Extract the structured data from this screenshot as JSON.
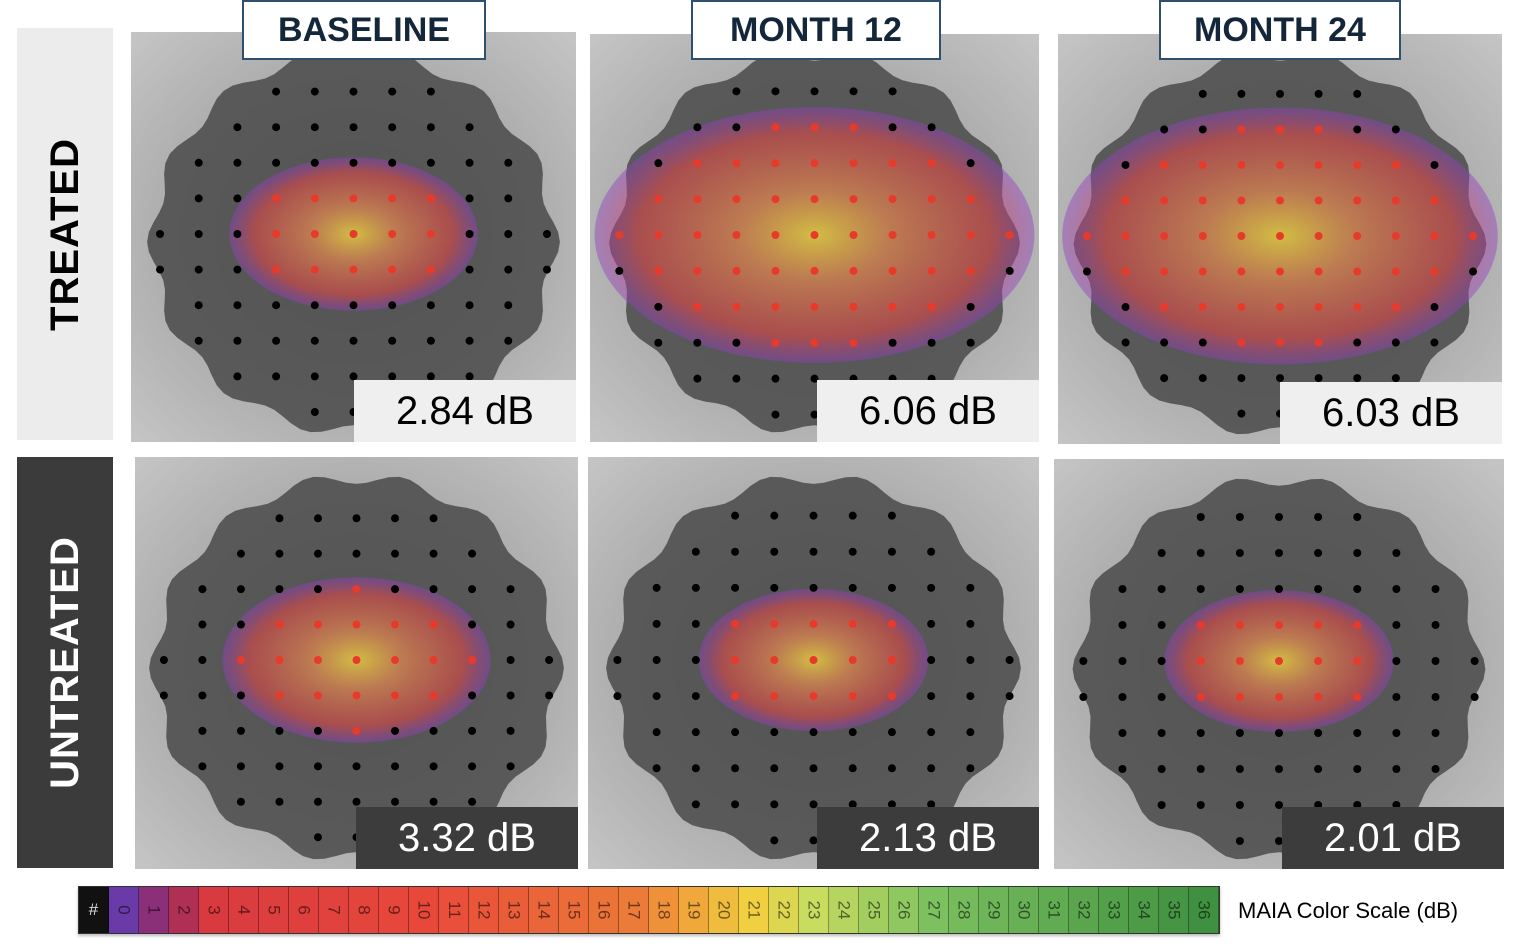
{
  "rows": [
    {
      "label": "TREATED",
      "scheme": "light"
    },
    {
      "label": "UNTREATED",
      "scheme": "dark"
    }
  ],
  "columns": [
    "BASELINE",
    "MONTH 12",
    "MONTH 24"
  ],
  "panels": [
    {
      "row": "TREATED",
      "column": "BASELINE",
      "mean_sensitivity": "2.84 dB",
      "heat_extent": 0.45
    },
    {
      "row": "TREATED",
      "column": "MONTH 12",
      "mean_sensitivity": "6.06 dB",
      "heat_extent": 0.9
    },
    {
      "row": "TREATED",
      "column": "MONTH 24",
      "mean_sensitivity": "6.03 dB",
      "heat_extent": 0.9
    },
    {
      "row": "UNTREATED",
      "column": "BASELINE",
      "mean_sensitivity": "3.32 dB",
      "heat_extent": 0.5
    },
    {
      "row": "UNTREATED",
      "column": "MONTH 12",
      "mean_sensitivity": "2.13 dB",
      "heat_extent": 0.4
    },
    {
      "row": "UNTREATED",
      "column": "MONTH 24",
      "mean_sensitivity": "2.01 dB",
      "heat_extent": 0.4
    }
  ],
  "color_scale": {
    "label": "MAIA Color Scale (dB)",
    "cells": [
      "#",
      "0",
      "1",
      "2",
      "3",
      "4",
      "5",
      "6",
      "7",
      "8",
      "9",
      "10",
      "11",
      "12",
      "13",
      "14",
      "15",
      "16",
      "17",
      "18",
      "19",
      "20",
      "21",
      "22",
      "23",
      "24",
      "25",
      "26",
      "27",
      "28",
      "29",
      "30",
      "31",
      "32",
      "33",
      "34",
      "35",
      "36"
    ],
    "colors": {
      "#": "#111111",
      "0": "#6a3aa8",
      "1": "#8a2f78",
      "2": "#b03055",
      "3": "#d83a40",
      "10": "#e8483a",
      "17": "#ec7a38",
      "19": "#f0a83a",
      "21": "#f0d040",
      "23": "#c8dc60",
      "27": "#7cc060",
      "36": "#3f9040"
    }
  }
}
